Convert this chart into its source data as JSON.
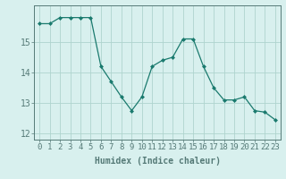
{
  "x": [
    0,
    1,
    2,
    3,
    4,
    5,
    6,
    7,
    8,
    9,
    10,
    11,
    12,
    13,
    14,
    15,
    16,
    17,
    18,
    19,
    20,
    21,
    22,
    23
  ],
  "y": [
    15.6,
    15.6,
    15.8,
    15.8,
    15.8,
    15.8,
    14.2,
    13.7,
    13.2,
    12.75,
    13.2,
    14.2,
    14.4,
    14.5,
    15.1,
    15.1,
    14.2,
    13.5,
    13.1,
    13.1,
    13.2,
    12.75,
    12.7,
    12.45
  ],
  "line_color": "#1a7a6e",
  "marker": "D",
  "marker_size": 2,
  "bg_color": "#d8f0ee",
  "grid_color": "#afd4ce",
  "axis_color": "#557a77",
  "xlabel": "Humidex (Indice chaleur)",
  "xlabel_fontsize": 7,
  "ylabel_ticks": [
    12,
    13,
    14,
    15
  ],
  "xlim": [
    -0.5,
    23.5
  ],
  "ylim": [
    11.8,
    16.2
  ],
  "tick_fontsize": 6.5,
  "ytick_fontsize": 7
}
